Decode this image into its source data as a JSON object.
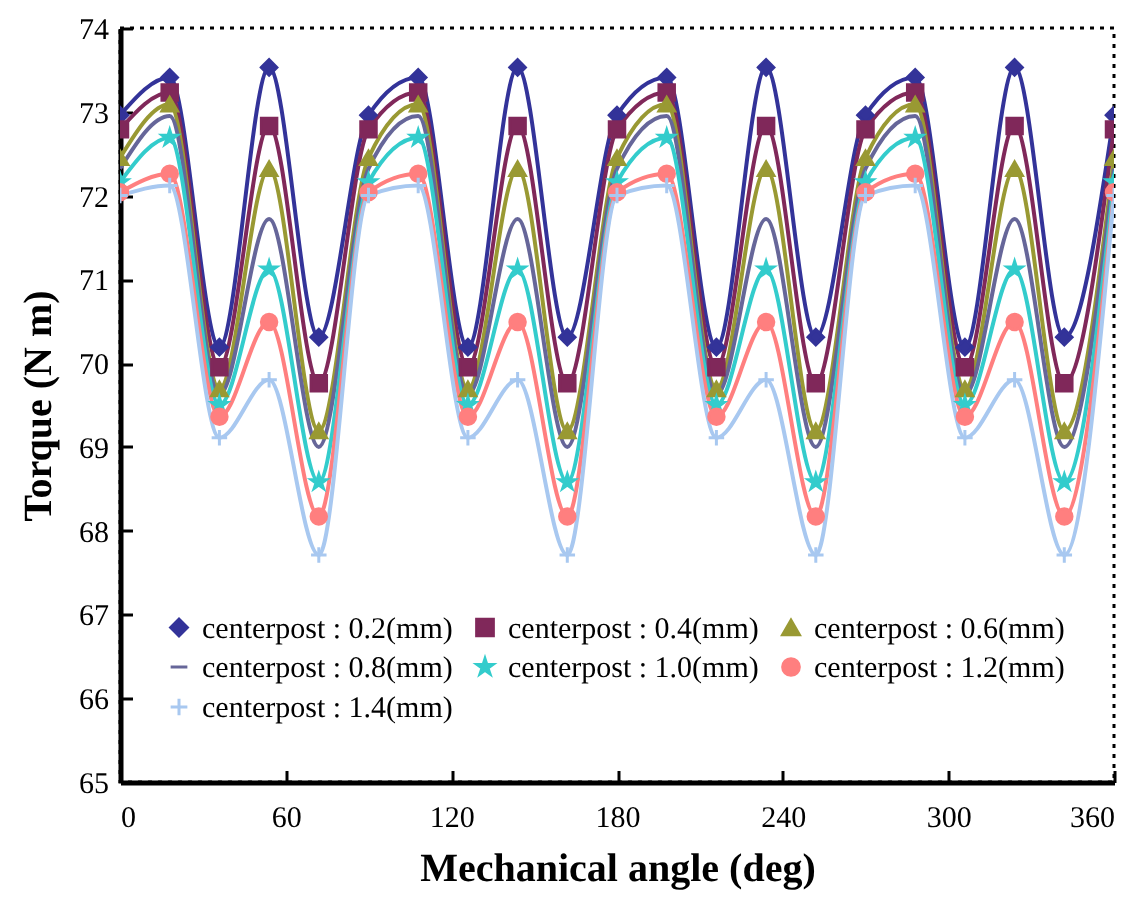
{
  "chart_data": {
    "type": "line",
    "xlabel": "Mechanical angle (deg)",
    "ylabel": "Torque (N m)",
    "x": [
      0,
      18,
      36,
      54,
      72,
      90,
      108,
      126,
      144,
      162,
      180,
      198,
      216,
      234,
      252,
      270,
      288,
      306,
      324,
      342,
      360
    ],
    "xlim": [
      0,
      360
    ],
    "xticks": [
      0,
      60,
      120,
      180,
      240,
      300,
      360
    ],
    "ylim": [
      65,
      74
    ],
    "yticks": [
      65,
      66,
      67,
      68,
      69,
      70,
      71,
      72,
      73,
      74
    ],
    "grid": false,
    "legend": "bottom",
    "series": [
      {
        "name": "centerpost : 0.2(mm)",
        "color": "#333399",
        "marker": "diamond",
        "values": [
          72.96,
          73.41,
          70.19,
          73.53,
          70.31,
          72.96,
          73.41,
          70.19,
          73.53,
          70.31,
          72.96,
          73.41,
          70.19,
          73.53,
          70.31,
          72.96,
          73.41,
          70.19,
          73.53,
          70.31,
          72.96
        ]
      },
      {
        "name": "centerpost : 0.4(mm)",
        "color": "#80285a",
        "marker": "square",
        "values": [
          72.79,
          73.23,
          69.95,
          72.83,
          69.76,
          72.79,
          73.23,
          69.95,
          72.83,
          69.76,
          72.79,
          73.23,
          69.95,
          72.83,
          69.76,
          72.79,
          73.23,
          69.95,
          72.83,
          69.76,
          72.79
        ]
      },
      {
        "name": "centerpost : 0.6(mm)",
        "color": "#999933",
        "marker": "triangle",
        "values": [
          72.45,
          73.09,
          69.69,
          72.32,
          69.19,
          72.45,
          73.09,
          69.69,
          72.32,
          69.19,
          72.45,
          73.09,
          69.69,
          72.32,
          69.19,
          72.45,
          73.09,
          69.69,
          72.32,
          69.19,
          72.45
        ]
      },
      {
        "name": "centerpost : 0.8(mm)",
        "color": "#666699",
        "marker": "none",
        "values": [
          72.32,
          72.95,
          69.62,
          71.72,
          69.0,
          72.32,
          72.95,
          69.62,
          71.72,
          69.0,
          72.32,
          72.95,
          69.62,
          71.72,
          69.0,
          72.32,
          72.95,
          69.62,
          71.72,
          69.0,
          72.32
        ]
      },
      {
        "name": "centerpost : 1.0(mm)",
        "color": "#33cccc",
        "marker": "star",
        "values": [
          72.16,
          72.69,
          69.5,
          71.12,
          68.58,
          72.16,
          72.69,
          69.5,
          71.12,
          68.58,
          72.16,
          72.69,
          69.5,
          71.12,
          68.58,
          72.16,
          72.69,
          69.5,
          71.12,
          68.58,
          72.16
        ]
      },
      {
        "name": "centerpost : 1.2(mm)",
        "color": "#ff7f7f",
        "marker": "circle",
        "values": [
          72.04,
          72.26,
          69.36,
          70.49,
          68.17,
          72.04,
          72.26,
          69.36,
          70.49,
          68.17,
          72.04,
          72.26,
          69.36,
          70.49,
          68.17,
          72.04,
          72.26,
          69.36,
          70.49,
          68.17,
          72.04
        ]
      },
      {
        "name": "centerpost : 1.4(mm)",
        "color": "#a8c8f0",
        "marker": "cross",
        "values": [
          72.0,
          72.12,
          69.11,
          69.8,
          67.71,
          72.0,
          72.12,
          69.11,
          69.8,
          67.71,
          72.0,
          72.12,
          69.11,
          69.8,
          67.71,
          72.0,
          72.12,
          69.11,
          69.8,
          67.71,
          72.0
        ]
      }
    ]
  }
}
